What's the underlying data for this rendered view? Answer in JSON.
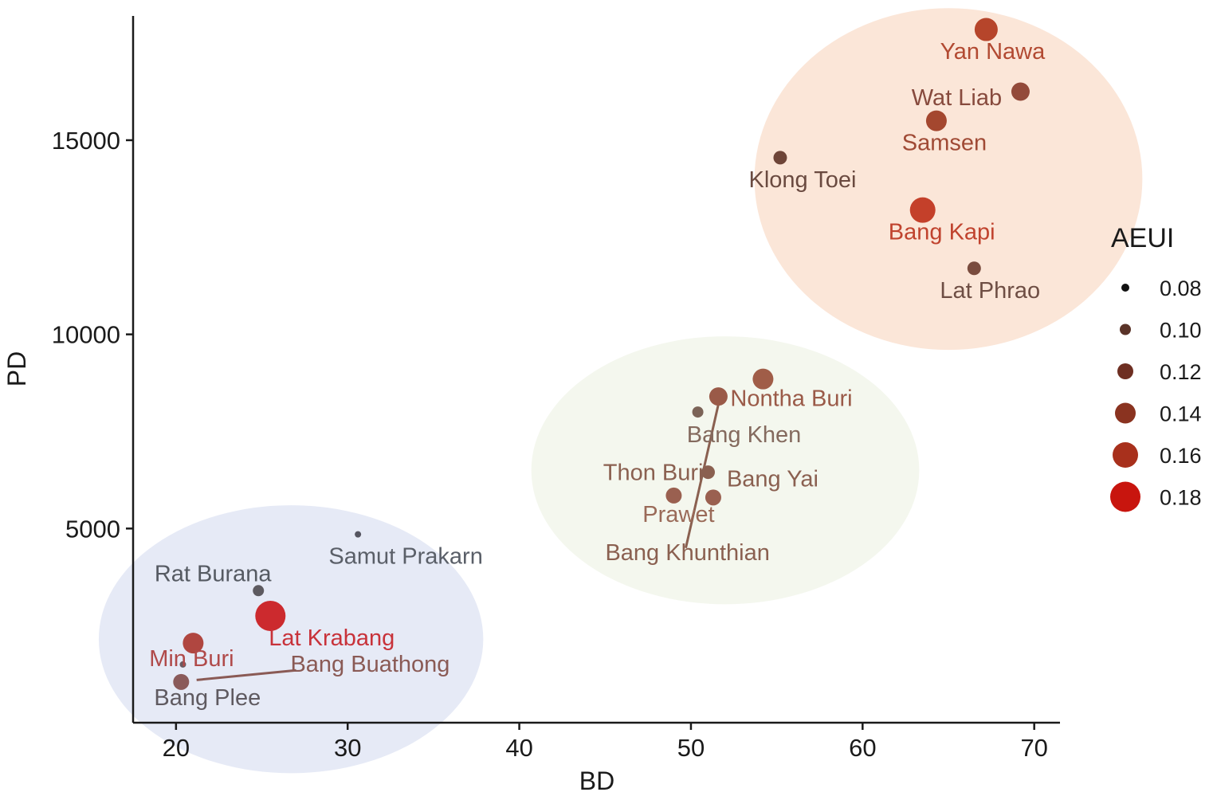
{
  "chart_data": {
    "type": "scatter",
    "xlabel": "BD",
    "ylabel": "PD",
    "xlim": [
      17.5,
      71.5
    ],
    "ylim": [
      0,
      18200
    ],
    "x_ticks": [
      20,
      30,
      40,
      50,
      60,
      70
    ],
    "y_ticks": [
      5000,
      10000,
      15000
    ],
    "grid": false,
    "size_legend": {
      "title": "AEUI",
      "placement": "right",
      "entries": [
        {
          "label": "0.08",
          "value": 0.08,
          "color": "#111111"
        },
        {
          "label": "0.10",
          "value": 0.1,
          "color": "#5a3328"
        },
        {
          "label": "0.12",
          "value": 0.12,
          "color": "#6e2f22"
        },
        {
          "label": "0.14",
          "value": 0.14,
          "color": "#8a3320"
        },
        {
          "label": "0.16",
          "value": 0.16,
          "color": "#a8301c"
        },
        {
          "label": "0.18",
          "value": 0.18,
          "color": "#c8150e"
        }
      ]
    },
    "clusters": [
      {
        "center": [
          65,
          14000
        ],
        "radius_x": 11.3,
        "radius_y": 4400,
        "color": "#fbe6d8"
      },
      {
        "center": [
          52,
          6500
        ],
        "radius_x": 11.3,
        "radius_y": 3450,
        "color": "#f4f7ee"
      },
      {
        "center": [
          26.7,
          2150
        ],
        "radius_x": 11.2,
        "radius_y": 3450,
        "color": "#e6eaf6"
      }
    ],
    "points": [
      {
        "label": "Yan Nawa",
        "x": 67.2,
        "y": 17850,
        "aeui": 0.15,
        "color": "#b6452b",
        "label_color": "#b24a32"
      },
      {
        "label": "Wat Liab",
        "x": 69.2,
        "y": 16250,
        "aeui": 0.13,
        "color": "#934a3a",
        "label_color": "#874a3d"
      },
      {
        "label": "Samsen",
        "x": 64.3,
        "y": 15500,
        "aeui": 0.14,
        "color": "#a4472f",
        "label_color": "#a04a35"
      },
      {
        "label": "Klong Toei",
        "x": 55.2,
        "y": 14550,
        "aeui": 0.11,
        "color": "#6e4538",
        "label_color": "#6a4a40"
      },
      {
        "label": "Bang Kapi",
        "x": 63.5,
        "y": 13200,
        "aeui": 0.16,
        "color": "#c4402a",
        "label_color": "#c0432e"
      },
      {
        "label": "Lat Phrao",
        "x": 66.5,
        "y": 11700,
        "aeui": 0.11,
        "color": "#7a4c3e",
        "label_color": "#6e4e44"
      },
      {
        "label": "Nontha Buri",
        "x": 51.6,
        "y": 8400,
        "aeui": 0.13,
        "color": "#9a5a48",
        "label_color": "#9a5a48"
      },
      {
        "label": "",
        "x": 54.2,
        "y": 8850,
        "aeui": 0.14,
        "color": "#a05d48",
        "label_color": "#9a5a48"
      },
      {
        "label": "Bang Khen",
        "x": 50.4,
        "y": 8000,
        "aeui": 0.1,
        "color": "#7b6357",
        "label_color": "#846a5e"
      },
      {
        "label": "Thon Buri",
        "x": 51.0,
        "y": 6450,
        "aeui": 0.11,
        "color": "#8a6050",
        "label_color": "#8a6050"
      },
      {
        "label": "Bang Yai",
        "x": 51.3,
        "y": 5800,
        "aeui": 0.12,
        "color": "#9a6050",
        "label_color": "#8a6050"
      },
      {
        "label": "Prawet",
        "x": 49.0,
        "y": 5850,
        "aeui": 0.12,
        "color": "#9a6050",
        "label_color": "#9a6a58"
      },
      {
        "label": "Bang Khunthian",
        "x": 49.8,
        "y": 4800,
        "aeui": 0.0,
        "color": "#8a6050",
        "label_color": "#8a6050"
      },
      {
        "label": "Samut Prakarn",
        "x": 30.6,
        "y": 4850,
        "aeui": 0.08,
        "color": "#555560",
        "label_color": "#5a5f68"
      },
      {
        "label": "Rat Burana",
        "x": 24.8,
        "y": 3400,
        "aeui": 0.1,
        "color": "#5d5a60",
        "label_color": "#555a62"
      },
      {
        "label": "Lat Krabang",
        "x": 25.5,
        "y": 2750,
        "aeui": 0.18,
        "color": "#cc2a2e",
        "label_color": "#c8323a"
      },
      {
        "label": "Min Buri",
        "x": 21.0,
        "y": 2050,
        "aeui": 0.14,
        "color": "#b04640",
        "label_color": "#b04a4a"
      },
      {
        "label": "Bang Buathong",
        "x": 20.4,
        "y": 1500,
        "aeui": 0.08,
        "color": "#6a5a60",
        "label_color": "#8a5a55"
      },
      {
        "label": "Bang Plee",
        "x": 20.3,
        "y": 1050,
        "aeui": 0.12,
        "color": "#8a5a5a",
        "label_color": "#5f5a60"
      }
    ],
    "leader_lines": [
      {
        "from": [
          51.6,
          8200
        ],
        "to": [
          49.7,
          4500
        ],
        "color": "#8a6050"
      },
      {
        "from": [
          21.2,
          1100
        ],
        "to": [
          27.0,
          1350
        ],
        "color": "#8a5a55"
      }
    ]
  }
}
